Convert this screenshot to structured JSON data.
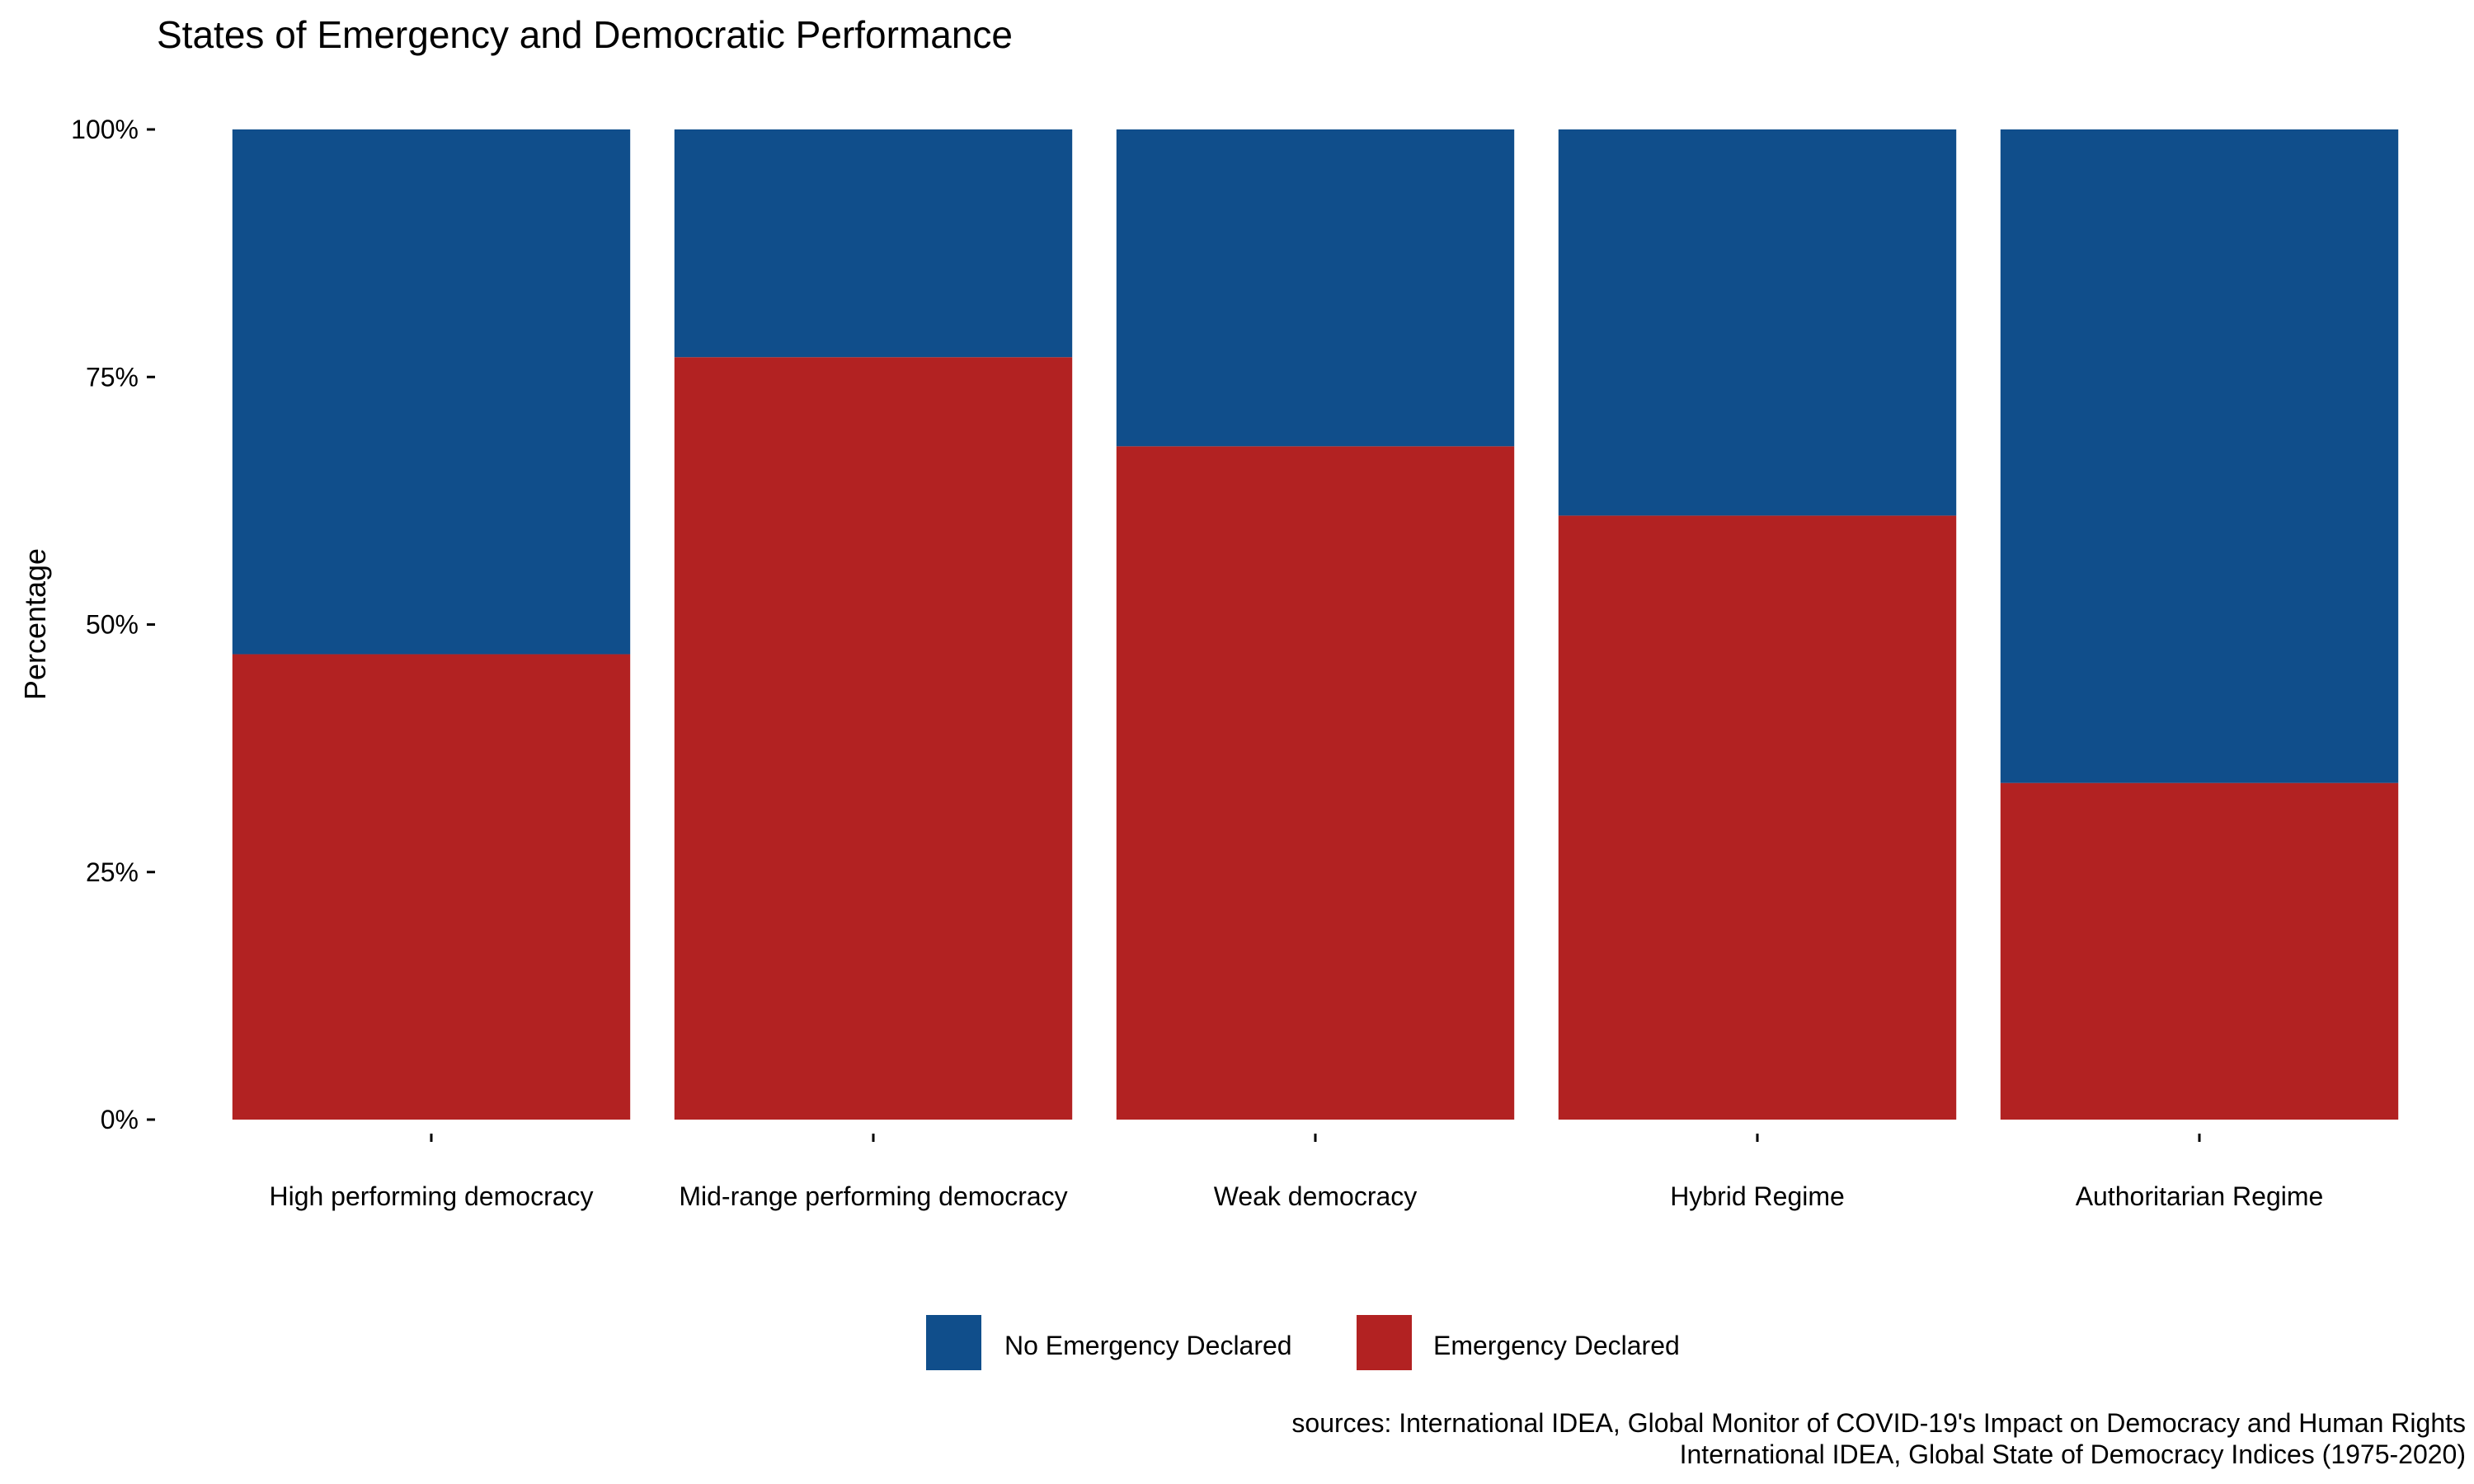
{
  "chart_data": {
    "type": "bar",
    "stacked": true,
    "title": "States of Emergency and Democratic Performance",
    "xlabel": "",
    "ylabel": "Percentage",
    "ylim": [
      0,
      100
    ],
    "yticks": [
      0,
      25,
      50,
      75,
      100
    ],
    "ytick_labels": [
      "0%",
      "25%",
      "50%",
      "75%",
      "100%"
    ],
    "categories": [
      "High performing democracy",
      "Mid-range performing democracy",
      "Weak democracy",
      "Hybrid Regime",
      "Authoritarian Regime"
    ],
    "series": [
      {
        "name": "Emergency Declared",
        "color": "#B22222",
        "values": [
          47,
          77,
          68,
          61,
          34
        ]
      },
      {
        "name": "No Emergency Declared",
        "color": "#104E8B",
        "values": [
          53,
          23,
          32,
          39,
          66
        ]
      }
    ],
    "legend": {
      "position": "bottom",
      "order": [
        "No Emergency Declared",
        "Emergency Declared"
      ]
    },
    "grid": false,
    "caption": [
      "sources: International IDEA, Global Monitor of COVID-19's Impact on Democracy and Human Rights",
      "International IDEA, Global State of Democracy Indices (1975-2020)"
    ]
  }
}
